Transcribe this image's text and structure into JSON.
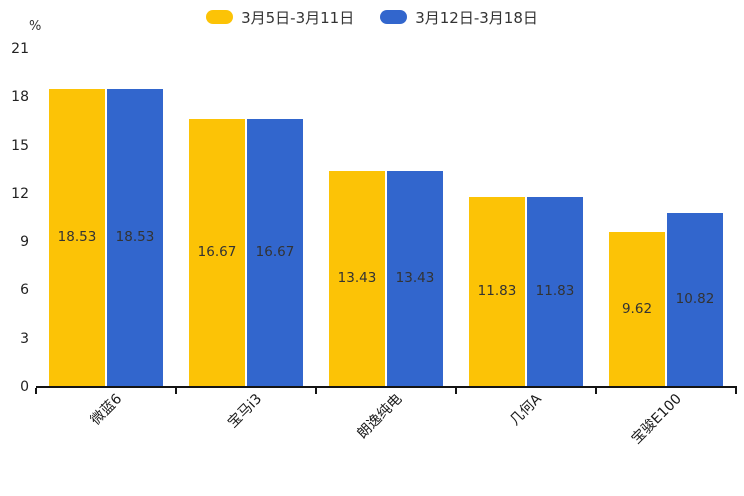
{
  "chart_data": {
    "type": "bar",
    "title": "",
    "categories": [
      "微蓝6",
      "宝马i3",
      "朗逸纯电",
      "几何A",
      "宝骏E100"
    ],
    "series": [
      {
        "name": "3月5日-3月11日",
        "color": "#FCC306",
        "values": [
          18.53,
          16.67,
          13.43,
          11.83,
          9.62
        ]
      },
      {
        "name": "3月12日-3月18日",
        "color": "#3266CD",
        "values": [
          18.53,
          16.67,
          13.43,
          11.83,
          10.82
        ]
      }
    ],
    "ylabel": "%",
    "ylim": [
      0,
      21
    ],
    "yticks": [
      0,
      3,
      6,
      9,
      12,
      15,
      18,
      21
    ],
    "grid": false,
    "legend_position": "top",
    "value_labels": "inside-center",
    "value_label_color": "#333333",
    "axis_color": "#141414",
    "background": "#ffffff"
  }
}
